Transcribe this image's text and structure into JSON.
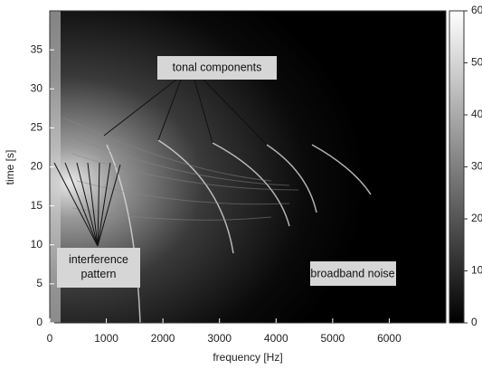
{
  "chart_data": {
    "type": "spectrogram",
    "x_label": "frequency [Hz]",
    "y_label": "time [s]",
    "xlim": [
      0,
      7000
    ],
    "xticks": [
      0,
      1000,
      2000,
      3000,
      4000,
      5000,
      6000
    ],
    "ylim": [
      0,
      40
    ],
    "yticks": [
      0,
      5,
      10,
      15,
      20,
      25,
      30,
      35
    ],
    "colorbar": {
      "lim": [
        0,
        60
      ],
      "ticks": [
        0,
        10,
        20,
        30,
        40,
        50,
        60
      ]
    },
    "annotations": [
      "tonal components",
      "interference pattern",
      "broadband noise"
    ]
  }
}
